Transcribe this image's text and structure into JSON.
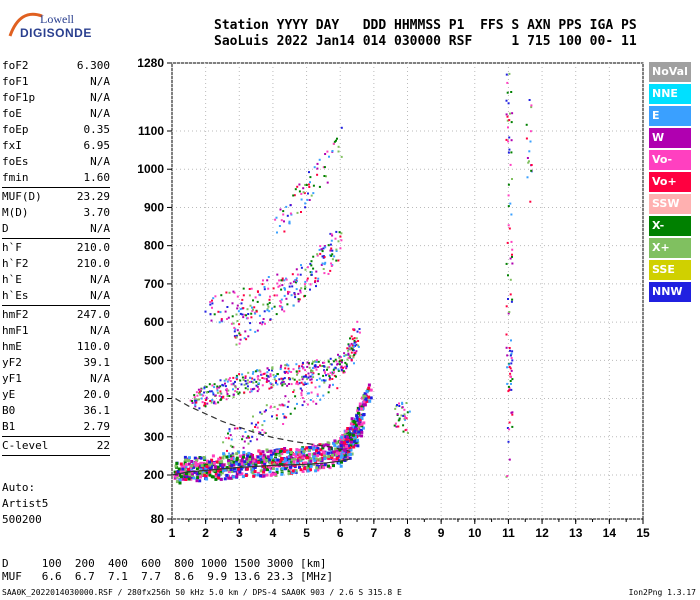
{
  "logo": {
    "line1": "Lowell",
    "line2": "DIGISONDE"
  },
  "header": {
    "row1": "Station YYYY DAY   DDD HHMMSS P1  FFS S AXN PPS IGA PS",
    "row2": "SaoLuis 2022 Jan14 014 030000 RSF     1 715 100 00- 11"
  },
  "params": [
    {
      "name": "foF2",
      "value": "6.300"
    },
    {
      "name": "foF1",
      "value": "N/A"
    },
    {
      "name": "foF1p",
      "value": "N/A"
    },
    {
      "name": "foE",
      "value": "N/A"
    },
    {
      "name": "foEp",
      "value": "0.35"
    },
    {
      "name": "fxI",
      "value": "6.95"
    },
    {
      "name": "foEs",
      "value": "N/A"
    },
    {
      "name": "fmin",
      "value": "1.60"
    },
    {
      "sep": true
    },
    {
      "name": "MUF(D)",
      "value": "23.29"
    },
    {
      "name": "M(D)",
      "value": "3.70"
    },
    {
      "name": "D",
      "value": "N/A"
    },
    {
      "sep": true
    },
    {
      "name": "h`F",
      "value": "210.0"
    },
    {
      "name": "h`F2",
      "value": "210.0"
    },
    {
      "name": "h`E",
      "value": "N/A"
    },
    {
      "name": "h`Es",
      "value": "N/A"
    },
    {
      "sep": true
    },
    {
      "name": "hmF2",
      "value": "247.0"
    },
    {
      "name": "hmF1",
      "value": "N/A"
    },
    {
      "name": "hmE",
      "value": "110.0"
    },
    {
      "name": "yF2",
      "value": "39.1"
    },
    {
      "name": "yF1",
      "value": "N/A"
    },
    {
      "name": "yE",
      "value": "20.0"
    },
    {
      "name": "B0",
      "value": "36.1"
    },
    {
      "name": "B1",
      "value": "2.79"
    },
    {
      "sep": true
    },
    {
      "name": "C-level",
      "value": "22"
    },
    {
      "sep": true
    }
  ],
  "auto": {
    "l1": "Auto:",
    "l2": "Artist5",
    "l3": "500200"
  },
  "legend": [
    {
      "label": "NoVal",
      "color": "#a0a0a0"
    },
    {
      "label": "NNE",
      "color": "#00e0ff"
    },
    {
      "label": "E",
      "color": "#3aa0ff"
    },
    {
      "label": "W",
      "color": "#b000b0"
    },
    {
      "label": "Vo-",
      "color": "#ff40c0"
    },
    {
      "label": "Vo+",
      "color": "#ff0040"
    },
    {
      "label": "SSW",
      "color": "#ffb0b0"
    },
    {
      "label": "X-",
      "color": "#008000"
    },
    {
      "label": "X+",
      "color": "#80c060"
    },
    {
      "label": "SSE",
      "color": "#d0d000"
    },
    {
      "label": "NNW",
      "color": "#2020e0"
    }
  ],
  "bottom": {
    "d_row": "D     100  200  400  600  800 1000 1500 3000 [km]",
    "muf_row": "MUF   6.6  6.7  7.1  7.7  8.6  9.9 13.6 23.3 [MHz]"
  },
  "footer": {
    "left": "SAA0K_2022014030000.RSF / 280fx256h 50 kHz 5.0 km / DPS-4 SAA0K 903 / 2.6 S 315.8 E",
    "right": "Ion2Png 1.3.17"
  },
  "chart_data": {
    "type": "scatter",
    "xlim": [
      1,
      15
    ],
    "ylim": [
      80,
      1280
    ],
    "xticks": [
      1,
      2,
      3,
      4,
      5,
      6,
      7,
      8,
      9,
      10,
      11,
      12,
      13,
      14,
      15
    ],
    "yticks": [
      80,
      200,
      300,
      400,
      500,
      600,
      700,
      800,
      900,
      1000,
      1100,
      1280
    ],
    "curves": [
      {
        "style": "solid",
        "x": [
          1.0,
          1.5,
          2.0,
          3.0,
          4.0,
          5.0,
          5.6,
          6.0,
          6.3
        ],
        "y": [
          200,
          208,
          212,
          220,
          225,
          228,
          232,
          236,
          242
        ]
      },
      {
        "style": "dashed",
        "x": [
          1.1,
          1.5,
          2.0,
          2.5,
          3.0,
          3.5,
          4.0,
          4.6,
          5.2,
          5.8,
          6.3
        ],
        "y": [
          400,
          380,
          360,
          340,
          325,
          310,
          298,
          288,
          280,
          272,
          262
        ]
      }
    ],
    "traces": [
      {
        "x": [
          1.0,
          1.5,
          2.0,
          2.5,
          3.0,
          3.5,
          4.0,
          4.5,
          5.0,
          5.5,
          6.0,
          6.2,
          6.4,
          6.6
        ],
        "y": [
          205,
          210,
          213,
          216,
          220,
          222,
          225,
          230,
          235,
          242,
          252,
          270,
          300,
          340
        ]
      },
      {
        "x": [
          1.0,
          1.5,
          2.0,
          2.5,
          3.0,
          3.5,
          4.0,
          4.5,
          5.0,
          5.5,
          6.0,
          6.2,
          6.4,
          6.6,
          6.8
        ],
        "y": [
          220,
          228,
          232,
          238,
          242,
          245,
          248,
          252,
          258,
          266,
          280,
          300,
          330,
          370,
          420
        ]
      },
      {
        "x": [
          1.6,
          2.0,
          2.5,
          3.0,
          3.5,
          4.0,
          4.5,
          5.0,
          5.5,
          6.0,
          6.3,
          6.5
        ],
        "y": [
          395,
          410,
          425,
          440,
          450,
          458,
          465,
          470,
          478,
          492,
          520,
          580
        ]
      },
      {
        "x": [
          2.5,
          3.0,
          3.5,
          4.0,
          4.5,
          5.0,
          5.5,
          6.0
        ],
        "y": [
          280,
          300,
          330,
          360,
          390,
          420,
          440,
          470
        ]
      },
      {
        "x": [
          2.0,
          2.5,
          3.0,
          3.5,
          4.0,
          4.5,
          5.0,
          5.5,
          6.0
        ],
        "y": [
          630,
          640,
          650,
          670,
          685,
          700,
          720,
          760,
          800
        ]
      },
      {
        "x": [
          2.8,
          3.0,
          3.5,
          4.0,
          4.5,
          5.0,
          5.5,
          6.0
        ],
        "y": [
          560,
          590,
          610,
          640,
          680,
          720,
          780,
          830
        ]
      },
      {
        "x": [
          4.0,
          4.5,
          5.0,
          5.5,
          6.0
        ],
        "y": [
          850,
          900,
          950,
          1000,
          1080
        ]
      },
      {
        "x": [
          7.6,
          7.8,
          8.0
        ],
        "y": [
          360,
          355,
          350
        ]
      },
      {
        "x": [
          11.0,
          11.0,
          11.0,
          11.0,
          11.0,
          11.0
        ],
        "y": [
          180,
          470,
          500,
          760,
          1100,
          1250
        ]
      },
      {
        "x": [
          11.6,
          11.6
        ],
        "y": [
          950,
          1190
        ]
      }
    ],
    "trace_colors": [
      "#2020e0",
      "#ff0040",
      "#ff40c0",
      "#008000",
      "#b000b0",
      "#3aa0ff",
      "#80c060"
    ]
  }
}
